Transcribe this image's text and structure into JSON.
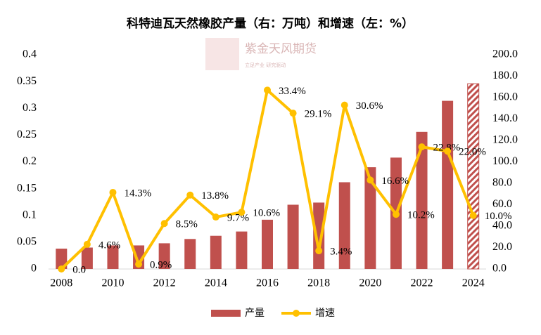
{
  "chart_data": {
    "type": "bar-line",
    "title": "科特迪瓦天然橡胶产量（右：万吨）和增速（左：%）",
    "watermark": "紫金天风期货",
    "watermark_subtitle": "立足产业 研究驱动",
    "categories": [
      "2008",
      null,
      "2010",
      null,
      "2012",
      null,
      "2014",
      null,
      "2016",
      null,
      "2018",
      null,
      "2020",
      null,
      "2022",
      null,
      "2024"
    ],
    "series": [
      {
        "name": "产量",
        "type": "bar",
        "axis": "y2",
        "color": "#c0504d",
        "hatched_index": 16,
        "values": [
          19,
          20,
          22,
          22,
          24,
          28,
          31,
          35,
          46,
          60,
          62,
          81,
          95,
          104,
          128,
          157,
          173
        ]
      },
      {
        "name": "增速",
        "type": "line",
        "axis": "y",
        "color": "#ffc000",
        "values": [
          0,
          0.046,
          0.143,
          0.009,
          0.085,
          0.138,
          0.097,
          0.106,
          0.334,
          0.291,
          0.034,
          0.306,
          0.166,
          0.102,
          0.228,
          0.22,
          0.1
        ],
        "value_labels": [
          "0.0",
          "4.6%",
          "14.3%",
          "0.9%",
          "8.5%",
          "13.8%",
          "9.7%",
          "10.6%",
          "33.4%",
          "29.1%",
          "3.4%",
          "30.6%",
          "16.6%",
          "10.2%",
          "22.8%",
          "22.0%",
          "10.0%"
        ]
      }
    ],
    "ylim": [
      0,
      0.4
    ],
    "yticks": [
      0,
      0.05,
      0.1,
      0.15,
      0.2,
      0.25,
      0.3,
      0.35,
      0.4
    ],
    "y2lim": [
      0,
      200
    ],
    "y2ticks": [
      {
        "value": 0,
        "label": "0.0"
      },
      {
        "value": 20,
        "label": "20.0"
      },
      {
        "value": 40,
        "label": "40.0"
      },
      {
        "value": 60,
        "label": "60.0"
      },
      {
        "value": 80,
        "label": "80.0"
      },
      {
        "value": 100,
        "label": "100.0"
      },
      {
        "value": 120,
        "label": "120.0"
      },
      {
        "value": 140,
        "label": "140.0"
      },
      {
        "value": 160,
        "label": "160.0"
      },
      {
        "value": 180,
        "label": "180.0"
      },
      {
        "value": 200,
        "label": "200.0"
      }
    ],
    "grid": false,
    "legend": "bottom"
  }
}
